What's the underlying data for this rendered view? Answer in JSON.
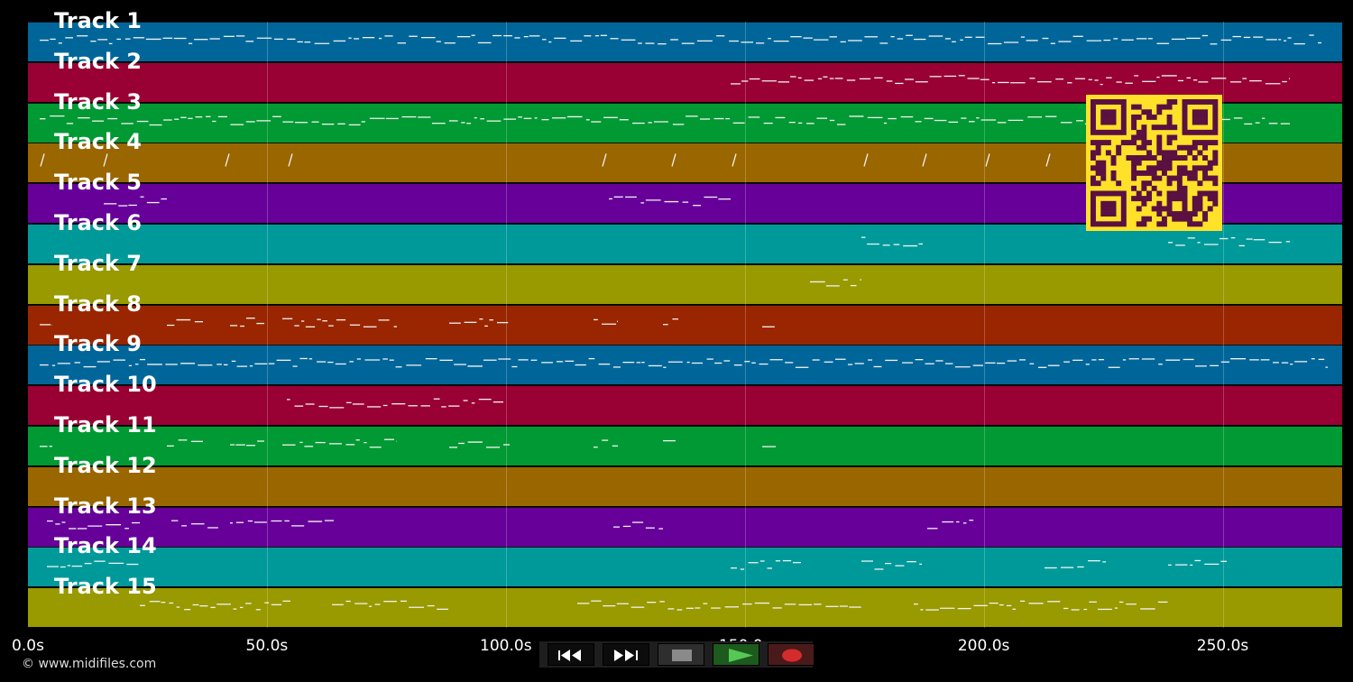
{
  "timeline": {
    "ticks": [
      {
        "label": "0.0s",
        "seconds": 0
      },
      {
        "label": "50.0s",
        "seconds": 50
      },
      {
        "label": "100.0s",
        "seconds": 100
      },
      {
        "label": "150.0s",
        "seconds": 150
      },
      {
        "label": "200.0s",
        "seconds": 200
      },
      {
        "label": "250.0s",
        "seconds": 250
      }
    ],
    "max_seconds": 275
  },
  "tracks": [
    {
      "label": "Track 1",
      "color": "#006699"
    },
    {
      "label": "Track 2",
      "color": "#990033"
    },
    {
      "label": "Track 3",
      "color": "#009933"
    },
    {
      "label": "Track 4",
      "color": "#996600"
    },
    {
      "label": "Track 5",
      "color": "#660099"
    },
    {
      "label": "Track 6",
      "color": "#009999"
    },
    {
      "label": "Track 7",
      "color": "#999900"
    },
    {
      "label": "Track 8",
      "color": "#992600"
    },
    {
      "label": "Track 9",
      "color": "#006699"
    },
    {
      "label": "Track 10",
      "color": "#990033"
    },
    {
      "label": "Track 11",
      "color": "#009933"
    },
    {
      "label": "Track 12",
      "color": "#996600"
    },
    {
      "label": "Track 13",
      "color": "#660099"
    },
    {
      "label": "Track 14",
      "color": "#009999"
    },
    {
      "label": "Track 15",
      "color": "#999900"
    }
  ],
  "copyright": "© www.midifiles.com",
  "transport": {
    "rewind_icon": "rewind-icon",
    "fast_forward_icon": "fast-forward-icon",
    "stop_icon": "stop-icon",
    "play_icon": "play-icon",
    "record_icon": "record-icon"
  },
  "qr_code": {
    "icon": "qr-code-icon",
    "color": "#ffe12a",
    "module_color": "#5a1040"
  }
}
